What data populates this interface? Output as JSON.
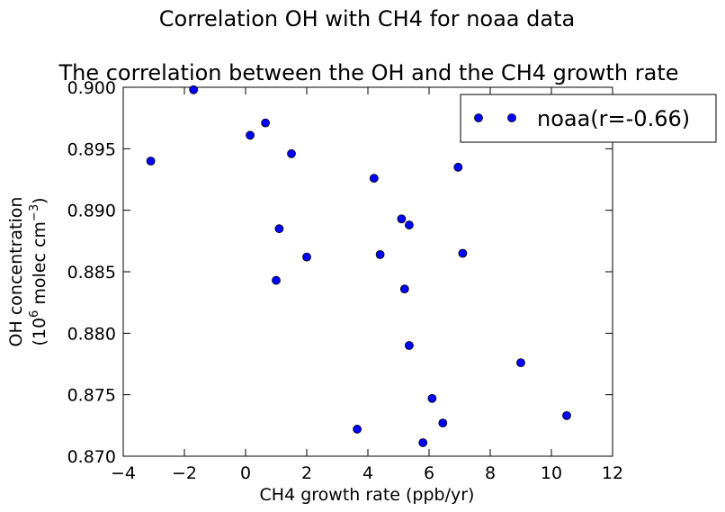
{
  "chart_data": {
    "type": "scatter",
    "suptitle": "Correlation OH with CH4 for noaa data",
    "title": "The correlation between the OH and the CH4 growth rate",
    "xlabel": "CH4 growth rate (ppb/yr)",
    "ylabel_line1": "OH concentration",
    "ylabel_line2_prefix": "(10",
    "ylabel_line2_exp": "6",
    "ylabel_line2_mid": " molec cm",
    "ylabel_line2_exp2": "−3",
    "ylabel_line2_suffix": ")",
    "xlim": [
      -4,
      12
    ],
    "ylim": [
      0.87,
      0.9
    ],
    "xticks": [
      -4,
      -2,
      0,
      2,
      4,
      6,
      8,
      10,
      12
    ],
    "xtick_labels": [
      "−4",
      "−2",
      "0",
      "2",
      "4",
      "6",
      "8",
      "10",
      "12"
    ],
    "yticks": [
      0.87,
      0.875,
      0.88,
      0.885,
      0.89,
      0.895,
      0.9
    ],
    "ytick_labels": [
      "0.870",
      "0.875",
      "0.880",
      "0.885",
      "0.890",
      "0.895",
      "0.900"
    ],
    "grid": false,
    "legend_position": "top-right",
    "series": [
      {
        "name": "noaa(r=-0.66)",
        "color": "#0000ff",
        "x": [
          -3.1,
          -1.7,
          0.15,
          0.65,
          1.5,
          4.2,
          5.1,
          5.35,
          6.95,
          1.1,
          2.0,
          4.4,
          7.1,
          1.0,
          5.2,
          5.35,
          9.0,
          6.1,
          6.45,
          3.65,
          5.8,
          10.5
        ],
        "y": [
          0.894,
          0.8998,
          0.8961,
          0.8971,
          0.8946,
          0.8926,
          0.8893,
          0.8888,
          0.8935,
          0.8885,
          0.8862,
          0.8864,
          0.8865,
          0.8843,
          0.8836,
          0.879,
          0.8776,
          0.8747,
          0.8727,
          0.8722,
          0.8711,
          0.8733
        ]
      }
    ]
  }
}
